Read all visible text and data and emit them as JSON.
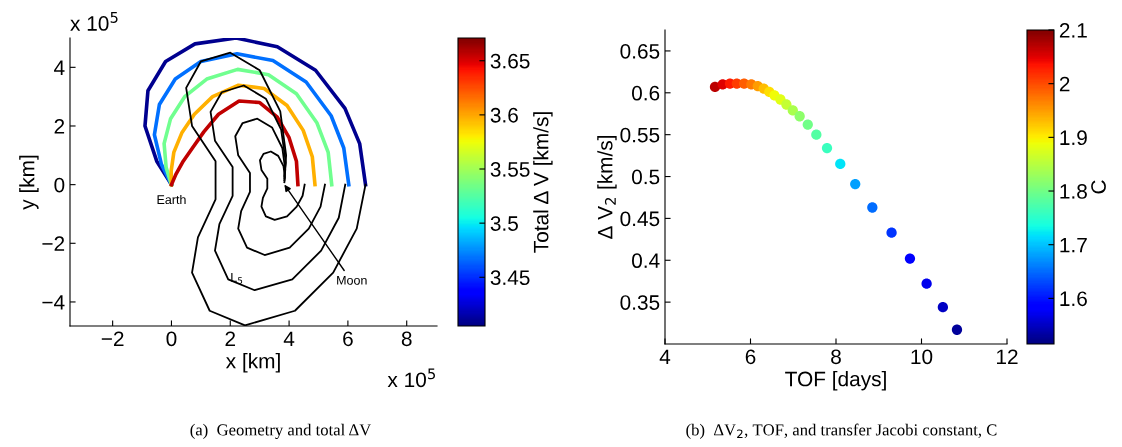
{
  "chart_data": [
    {
      "type": "line",
      "xlabel": "x [km]",
      "ylabel": "y [km]",
      "clabel": "Total Δ V [km/s]",
      "xlim": [
        -3.45,
        9.03
      ],
      "ylim": [
        -4.82,
        5.0
      ],
      "xticks": [
        {
          "value": -2,
          "label": "−2"
        },
        0,
        2,
        4,
        6,
        8
      ],
      "yticks": [
        {
          "value": -4,
          "label": "−4"
        },
        {
          "value": -2,
          "label": "−2"
        },
        0,
        2,
        4
      ],
      "clim": [
        3.405,
        3.671
      ],
      "cticks": [
        3.45,
        3.5,
        3.55,
        3.6,
        3.65
      ],
      "series": [
        {
          "color": "#00008f",
          "x": [
            0,
            -0.5,
            -0.9,
            -0.8,
            -0.2,
            0.8,
            2.2,
            3.6,
            4.9,
            5.9,
            6.4,
            6.6
          ],
          "values": [
            0,
            0.8,
            2.0,
            3.2,
            4.2,
            4.8,
            5.0,
            4.7,
            3.9,
            2.6,
            1.4,
            0
          ]
        },
        {
          "color": "#0070ff",
          "x": [
            0,
            -0.34,
            -0.58,
            -0.41,
            0.13,
            1.0,
            2.23,
            3.45,
            4.58,
            5.43,
            5.86,
            6.03
          ],
          "values": [
            0,
            0.69,
            1.7,
            2.73,
            3.6,
            4.2,
            4.46,
            4.23,
            3.5,
            2.35,
            1.25,
            0
          ]
        },
        {
          "color": "#70ff8f",
          "x": [
            0,
            -0.18,
            -0.25,
            -0.03,
            0.45,
            1.2,
            2.25,
            3.3,
            4.25,
            4.95,
            5.33,
            5.45
          ],
          "values": [
            0,
            0.58,
            1.4,
            2.25,
            3.0,
            3.6,
            3.93,
            3.75,
            3.1,
            2.1,
            1.1,
            0
          ]
        },
        {
          "color": "#ffb000",
          "x": [
            0,
            -0.01,
            0.08,
            0.36,
            0.78,
            1.4,
            2.28,
            3.15,
            3.93,
            4.48,
            4.79,
            4.88
          ],
          "values": [
            0,
            0.46,
            1.1,
            1.78,
            2.4,
            3.0,
            3.39,
            3.28,
            2.7,
            1.85,
            0.95,
            0
          ]
        },
        {
          "color": "#c00000",
          "x": [
            0,
            0.15,
            0.4,
            0.75,
            1.1,
            1.6,
            2.3,
            3.0,
            3.6,
            4.0,
            4.25,
            4.3
          ],
          "values": [
            0,
            0.35,
            0.8,
            1.3,
            1.8,
            2.4,
            2.85,
            2.8,
            2.3,
            1.6,
            0.8,
            0
          ]
        },
        {
          "color": "#000000",
          "x": [
            6.6,
            6.3,
            5.5,
            4.2,
            2.5,
            1.3,
            0.7,
            0.9,
            1.5,
            1.5,
            0.7,
            0.5,
            1.0,
            2.0,
            3.0,
            3.7,
            3.9,
            3.84
          ],
          "values": [
            0,
            -1.5,
            -3.0,
            -4.3,
            -4.8,
            -4.3,
            -3.0,
            -1.8,
            -0.5,
            0.8,
            2.0,
            3.3,
            4.2,
            4.5,
            3.9,
            2.5,
            1.0,
            0.3
          ]
        },
        {
          "color": "#000000",
          "x": [
            5.91,
            5.69,
            5.09,
            4.11,
            2.83,
            1.93,
            1.48,
            1.63,
            2.08,
            2.08,
            1.48,
            1.33,
            1.71,
            2.46,
            3.21,
            3.73,
            3.89,
            3.84
          ],
          "values": [
            0,
            -1.13,
            -2.25,
            -3.23,
            -3.6,
            -3.23,
            -2.25,
            -1.35,
            -0.38,
            0.6,
            1.5,
            2.48,
            3.15,
            3.38,
            2.93,
            1.88,
            0.75,
            0.23
          ]
        },
        {
          "color": "#000000",
          "x": [
            5.22,
            5.07,
            4.67,
            4.02,
            3.17,
            2.57,
            2.27,
            2.37,
            2.67,
            2.67,
            2.27,
            2.17,
            2.42,
            2.92,
            3.42,
            3.77,
            3.87,
            3.84
          ],
          "values": [
            0,
            -0.75,
            -1.5,
            -2.15,
            -2.4,
            -2.15,
            -1.5,
            -0.9,
            -0.25,
            0.4,
            1.0,
            1.65,
            2.1,
            2.25,
            1.95,
            1.25,
            0.5,
            0.15
          ]
        },
        {
          "color": "#000000",
          "x": [
            4.53,
            4.46,
            4.26,
            3.93,
            3.51,
            3.21,
            3.06,
            3.11,
            3.26,
            3.26,
            3.06,
            3.01,
            3.13,
            3.38,
            3.63,
            3.81,
            3.86,
            3.84
          ],
          "values": [
            0,
            -0.38,
            -0.75,
            -1.08,
            -1.2,
            -1.08,
            -0.75,
            -0.45,
            -0.13,
            0.2,
            0.5,
            0.83,
            1.05,
            1.13,
            0.98,
            0.63,
            0.25,
            0.08
          ]
        }
      ],
      "annotations": [
        {
          "text": "Earth",
          "x": 0,
          "y": 0
        },
        {
          "text": "Moon",
          "x": 3.84,
          "y": 0
        },
        {
          "text": "L$_{5}$",
          "x": 2.0,
          "y": -3.2
        },
        "x 10$^{5}$",
        "x 10$^{5}$",
        "(a)  Geometry and total ΔV"
      ]
    },
    {
      "type": "scatter",
      "xlabel": "TOF [days]",
      "ylabel": "Δ V$_{2}$ [km/s]",
      "clabel": "C",
      "xlim": [
        4,
        12
      ],
      "ylim": [
        0.3,
        0.675
      ],
      "xticks": [
        4,
        6,
        8,
        10,
        12
      ],
      "yticks": [
        0.35,
        0.4,
        0.45,
        0.5,
        0.55,
        0.6,
        0.65
      ],
      "clim": [
        1.515,
        2.1
      ],
      "cticks": [
        1.6,
        1.7,
        1.8,
        1.9,
        2,
        2.1
      ],
      "marker": "circle",
      "x": [
        5.17,
        5.35,
        5.52,
        5.68,
        5.85,
        6.02,
        6.17,
        6.31,
        6.44,
        6.56,
        6.7,
        6.84,
        6.99,
        7.15,
        7.34,
        7.54,
        7.79,
        8.1,
        8.45,
        8.85,
        9.3,
        9.73,
        10.12,
        10.5,
        10.83
      ],
      "values": [
        0.607,
        0.61,
        0.611,
        0.611,
        0.611,
        0.61,
        0.608,
        0.605,
        0.601,
        0.597,
        0.592,
        0.586,
        0.579,
        0.572,
        0.562,
        0.55,
        0.534,
        0.515,
        0.491,
        0.463,
        0.433,
        0.402,
        0.372,
        0.344,
        0.317
      ],
      "cvalues": [
        2.07,
        2.05,
        2.03,
        2.01,
        1.99,
        1.97,
        1.95,
        1.93,
        1.91,
        1.89,
        1.88,
        1.86,
        1.84,
        1.82,
        1.8,
        1.78,
        1.76,
        1.72,
        1.68,
        1.65,
        1.62,
        1.59,
        1.57,
        1.55,
        1.53
      ],
      "annotations": [
        "(b)  ΔV$_{2}$, TOF, and transfer Jacobi constant, C"
      ]
    }
  ]
}
